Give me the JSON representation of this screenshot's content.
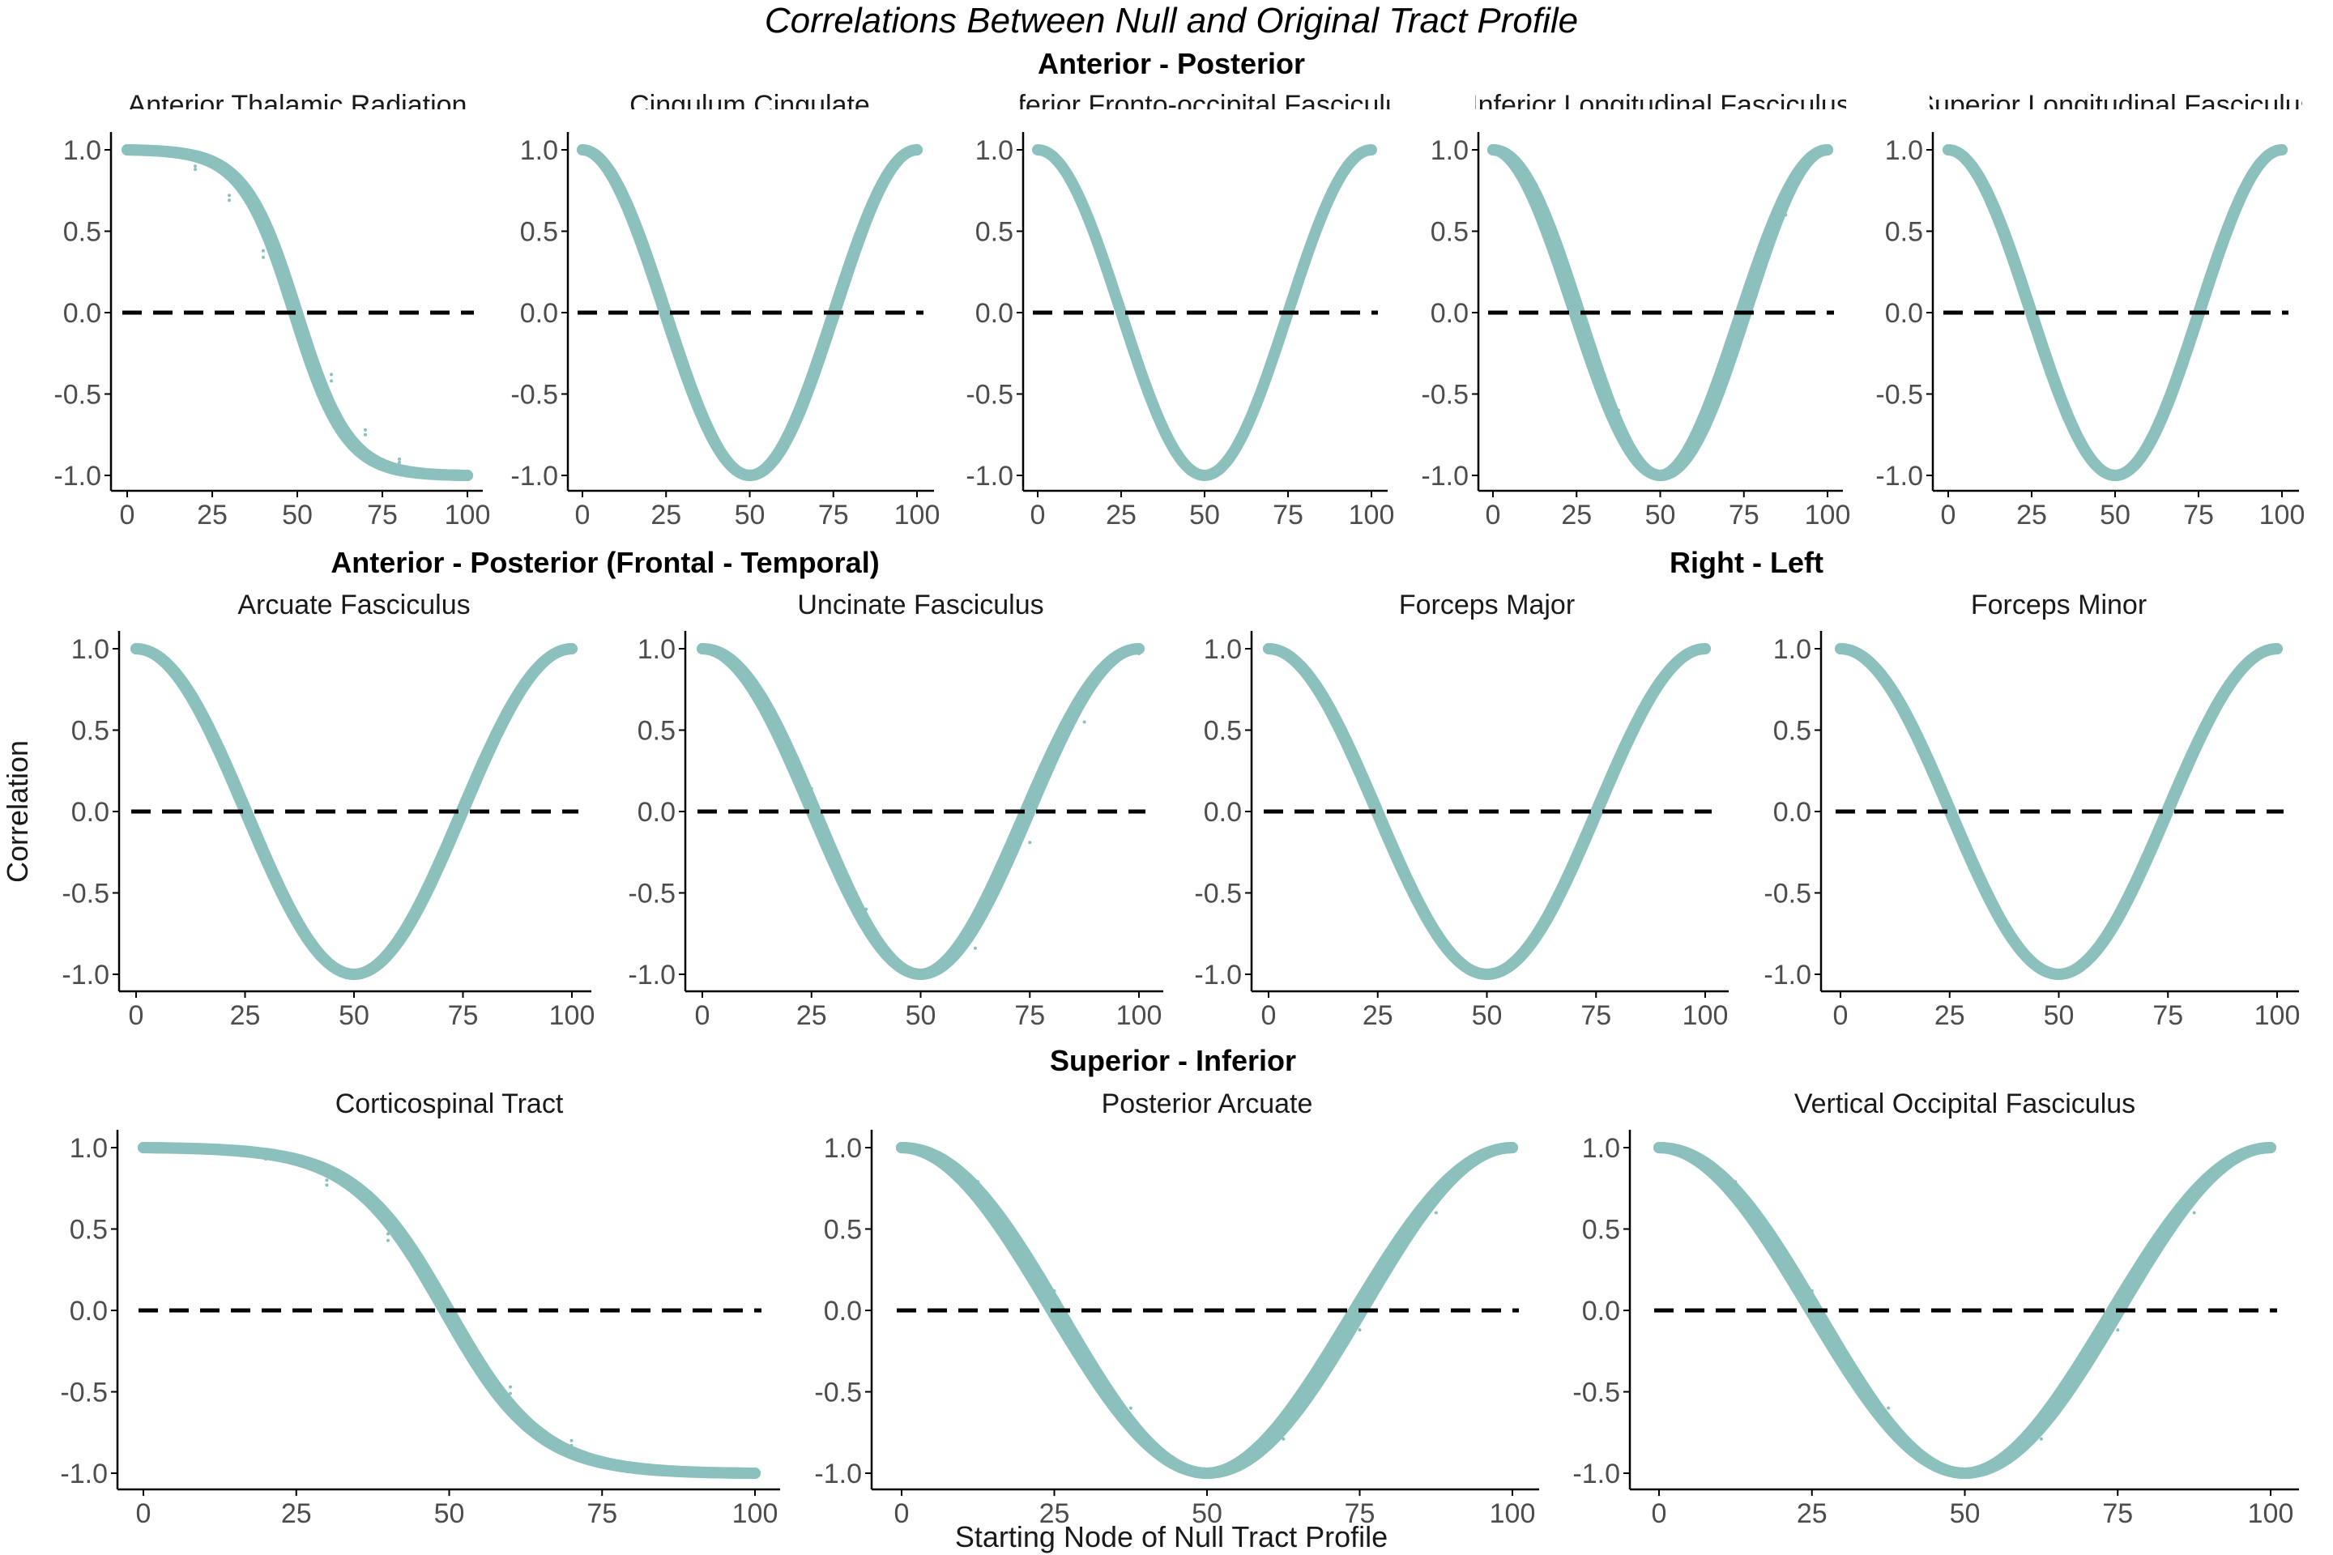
{
  "figure": {
    "title": "Correlations Between Null and Original Tract Profile",
    "xlabel": "Starting Node of Null Tract Profile",
    "ylabel": "Correlation",
    "colors": {
      "line": "#8cc0bc",
      "reference": "#000000",
      "axis": "#000000"
    }
  },
  "groups": [
    {
      "label": "Anterior - Posterior"
    },
    {
      "label": "Anterior - Posterior (Frontal - Temporal)"
    },
    {
      "label": "Right - Left"
    },
    {
      "label": "Superior - Inferior"
    }
  ],
  "chart_data": [
    {
      "type": "line",
      "group": "Anterior - Posterior",
      "title": "Anterior Thalamic Radiation",
      "shape": "half-cosine",
      "x": [
        0,
        10,
        20,
        30,
        40,
        50,
        60,
        70,
        80,
        90,
        100
      ],
      "xlim": [
        0,
        100
      ],
      "ylim": [
        -1,
        1
      ],
      "xticks": [
        "0",
        "25",
        "50",
        "75",
        "100"
      ],
      "yticks": [
        "1.0",
        "0.5",
        "0.0",
        "-0.5",
        "-1.0"
      ],
      "series": [
        {
          "values": [
            1.0,
            0.98,
            0.9,
            0.72,
            0.38,
            0.0,
            -0.38,
            -0.72,
            -0.9,
            -0.98,
            -1.0
          ]
        },
        {
          "values": [
            1.0,
            0.97,
            0.88,
            0.69,
            0.34,
            -0.04,
            -0.42,
            -0.75,
            -0.92,
            -0.99,
            -1.0
          ]
        }
      ],
      "reference_y": 0
    },
    {
      "type": "line",
      "group": "Anterior - Posterior",
      "title": "Cingulum Cingulate",
      "shape": "full-cosine",
      "x": [
        0,
        12.5,
        25,
        37.5,
        50,
        62.5,
        75,
        87.5,
        100
      ],
      "xlim": [
        0,
        100
      ],
      "ylim": [
        -1,
        1
      ],
      "xticks": [
        "0",
        "25",
        "50",
        "75",
        "100"
      ],
      "yticks": [
        "1.0",
        "0.5",
        "0.0",
        "-0.5",
        "-1.0"
      ],
      "series": [
        {
          "values": [
            1.0,
            0.71,
            0.0,
            -0.71,
            -1.0,
            -0.71,
            0.0,
            0.71,
            1.0
          ]
        },
        {
          "values": [
            1.0,
            0.66,
            -0.06,
            -0.75,
            -1.0,
            -0.66,
            0.06,
            0.75,
            1.0
          ]
        }
      ],
      "reference_y": 0
    },
    {
      "type": "line",
      "group": "Anterior - Posterior",
      "title": "Inferior Fronto-occipital Fasciculus",
      "shape": "full-cosine",
      "x": [
        0,
        12.5,
        25,
        37.5,
        50,
        62.5,
        75,
        87.5,
        100
      ],
      "xlim": [
        0,
        100
      ],
      "ylim": [
        -1,
        1
      ],
      "xticks": [
        "0",
        "25",
        "50",
        "75",
        "100"
      ],
      "yticks": [
        "1.0",
        "0.5",
        "0.0",
        "-0.5",
        "-1.0"
      ],
      "series": [
        {
          "values": [
            1.0,
            0.71,
            0.0,
            -0.71,
            -1.0,
            -0.71,
            0.0,
            0.71,
            1.0
          ]
        }
      ],
      "reference_y": 0
    },
    {
      "type": "line",
      "group": "Anterior - Posterior",
      "title": "Inferior Longitudinal Fasciculus",
      "shape": "full-cosine",
      "x": [
        0,
        12.5,
        25,
        37.5,
        50,
        62.5,
        75,
        87.5,
        100
      ],
      "xlim": [
        0,
        100
      ],
      "ylim": [
        -1,
        1
      ],
      "xticks": [
        "0",
        "25",
        "50",
        "75",
        "100"
      ],
      "yticks": [
        "1.0",
        "0.5",
        "0.0",
        "-0.5",
        "-1.0"
      ],
      "series": [
        {
          "values": [
            1.0,
            0.62,
            -0.09,
            -0.77,
            -1.0,
            -0.62,
            0.09,
            0.77,
            1.0
          ]
        },
        {
          "values": [
            1.0,
            0.71,
            0.0,
            -0.71,
            -1.0,
            -0.71,
            0.0,
            0.71,
            1.0
          ]
        },
        {
          "values": [
            1.0,
            0.79,
            0.12,
            -0.6,
            -1.0,
            -0.79,
            -0.12,
            0.6,
            1.0
          ]
        }
      ],
      "reference_y": 0
    },
    {
      "type": "line",
      "group": "Anterior - Posterior",
      "title": "Superior Longitudinal Fasciculus",
      "shape": "full-cosine",
      "x": [
        0,
        12.5,
        25,
        37.5,
        50,
        62.5,
        75,
        87.5,
        100
      ],
      "xlim": [
        0,
        100
      ],
      "ylim": [
        -1,
        1
      ],
      "xticks": [
        "0",
        "25",
        "50",
        "75",
        "100"
      ],
      "yticks": [
        "1.0",
        "0.5",
        "0.0",
        "-0.5",
        "-1.0"
      ],
      "series": [
        {
          "values": [
            1.0,
            0.71,
            0.0,
            -0.71,
            -1.0,
            -0.71,
            0.0,
            0.71,
            1.0
          ]
        },
        {
          "values": [
            1.0,
            0.68,
            -0.04,
            -0.73,
            -1.0,
            -0.68,
            0.04,
            0.73,
            1.0
          ]
        }
      ],
      "reference_y": 0
    },
    {
      "type": "line",
      "group": "Anterior - Posterior (Frontal - Temporal)",
      "title": "Arcuate Fasciculus",
      "shape": "full-cosine",
      "x": [
        0,
        12.5,
        25,
        37.5,
        50,
        62.5,
        75,
        87.5,
        100
      ],
      "xlim": [
        0,
        100
      ],
      "ylim": [
        -1,
        1
      ],
      "xticks": [
        "0",
        "25",
        "50",
        "75",
        "100"
      ],
      "yticks": [
        "1.0",
        "0.5",
        "0.0",
        "-0.5",
        "-1.0"
      ],
      "series": [
        {
          "values": [
            1.0,
            0.71,
            0.0,
            -0.71,
            -1.0,
            -0.71,
            0.0,
            0.71,
            1.0
          ]
        },
        {
          "values": [
            1.0,
            0.74,
            0.05,
            -0.68,
            -1.0,
            -0.74,
            -0.05,
            0.68,
            1.0
          ]
        }
      ],
      "reference_y": 0
    },
    {
      "type": "line",
      "group": "Anterior - Posterior (Frontal - Temporal)",
      "title": "Uncinate Fasciculus",
      "shape": "full-cosine",
      "x": [
        0,
        12.5,
        25,
        37.5,
        50,
        62.5,
        75,
        87.5,
        100
      ],
      "xlim": [
        0,
        100
      ],
      "ylim": [
        -1,
        1
      ],
      "xticks": [
        "0",
        "25",
        "50",
        "75",
        "100"
      ],
      "yticks": [
        "1.0",
        "0.5",
        "0.0",
        "-0.5",
        "-1.0"
      ],
      "series": [
        {
          "values": [
            1.0,
            0.71,
            0.0,
            -0.71,
            -1.0,
            -0.71,
            0.0,
            0.71,
            1.0
          ]
        },
        {
          "values": [
            1.0,
            0.79,
            0.14,
            -0.6,
            -0.99,
            -0.84,
            -0.19,
            0.55,
            0.97
          ]
        }
      ],
      "reference_y": 0
    },
    {
      "type": "line",
      "group": "Right - Left",
      "title": "Forceps Major",
      "shape": "full-cosine",
      "x": [
        0,
        12.5,
        25,
        37.5,
        50,
        62.5,
        75,
        87.5,
        100
      ],
      "xlim": [
        0,
        100
      ],
      "ylim": [
        -1,
        1
      ],
      "xticks": [
        "0",
        "25",
        "50",
        "75",
        "100"
      ],
      "yticks": [
        "1.0",
        "0.5",
        "0.0",
        "-0.5",
        "-1.0"
      ],
      "series": [
        {
          "values": [
            1.0,
            0.71,
            0.0,
            -0.71,
            -1.0,
            -0.71,
            0.0,
            0.71,
            1.0
          ]
        },
        {
          "values": [
            1.0,
            0.68,
            -0.04,
            -0.73,
            -1.0,
            -0.68,
            0.04,
            0.73,
            1.0
          ]
        }
      ],
      "reference_y": 0
    },
    {
      "type": "line",
      "group": "Right - Left",
      "title": "Forceps Minor",
      "shape": "full-cosine",
      "x": [
        0,
        12.5,
        25,
        37.5,
        50,
        62.5,
        75,
        87.5,
        100
      ],
      "xlim": [
        0,
        100
      ],
      "ylim": [
        -1,
        1
      ],
      "xticks": [
        "0",
        "25",
        "50",
        "75",
        "100"
      ],
      "yticks": [
        "1.0",
        "0.5",
        "0.0",
        "-0.5",
        "-1.0"
      ],
      "series": [
        {
          "values": [
            1.0,
            0.71,
            0.0,
            -0.71,
            -1.0,
            -0.71,
            0.0,
            0.71,
            1.0
          ]
        },
        {
          "values": [
            1.0,
            0.74,
            0.04,
            -0.69,
            -1.0,
            -0.74,
            -0.04,
            0.69,
            1.0
          ]
        }
      ],
      "reference_y": 0
    },
    {
      "type": "line",
      "group": "Superior - Inferior",
      "title": "Corticospinal Tract",
      "shape": "half-cosine",
      "x": [
        0,
        10,
        20,
        30,
        40,
        50,
        60,
        70,
        80,
        90,
        100
      ],
      "xlim": [
        0,
        100
      ],
      "ylim": [
        -1,
        1
      ],
      "xticks": [
        "0",
        "25",
        "50",
        "75",
        "100"
      ],
      "yticks": [
        "1.0",
        "0.5",
        "0.0",
        "-0.5",
        "-1.0"
      ],
      "series": [
        {
          "values": [
            1.0,
            0.99,
            0.94,
            0.8,
            0.47,
            0.0,
            -0.47,
            -0.8,
            -0.94,
            -0.99,
            -1.0
          ]
        },
        {
          "values": [
            1.0,
            0.99,
            0.93,
            0.77,
            0.43,
            -0.04,
            -0.51,
            -0.83,
            -0.95,
            -0.99,
            -1.0
          ]
        }
      ],
      "reference_y": 0
    },
    {
      "type": "line",
      "group": "Superior - Inferior",
      "title": "Posterior Arcuate",
      "shape": "full-cosine",
      "x": [
        0,
        12.5,
        25,
        37.5,
        50,
        62.5,
        75,
        87.5,
        100
      ],
      "xlim": [
        0,
        100
      ],
      "ylim": [
        -1,
        1
      ],
      "xticks": [
        "0",
        "25",
        "50",
        "75",
        "100"
      ],
      "yticks": [
        "1.0",
        "0.5",
        "0.0",
        "-0.5",
        "-1.0"
      ],
      "series": [
        {
          "values": [
            1.0,
            0.66,
            -0.06,
            -0.75,
            -1.0,
            -0.66,
            0.06,
            0.75,
            1.0
          ]
        },
        {
          "values": [
            1.0,
            0.74,
            0.05,
            -0.68,
            -1.0,
            -0.74,
            -0.05,
            0.68,
            1.0
          ]
        },
        {
          "values": [
            1.0,
            0.79,
            0.12,
            -0.6,
            -1.0,
            -0.79,
            -0.12,
            0.6,
            1.0
          ]
        }
      ],
      "reference_y": 0
    },
    {
      "type": "line",
      "group": "Superior - Inferior",
      "title": "Vertical Occipital Fasciculus",
      "shape": "full-cosine",
      "x": [
        0,
        12.5,
        25,
        37.5,
        50,
        62.5,
        75,
        87.5,
        100
      ],
      "xlim": [
        0,
        100
      ],
      "ylim": [
        -1,
        1
      ],
      "xticks": [
        "0",
        "25",
        "50",
        "75",
        "100"
      ],
      "yticks": [
        "1.0",
        "0.5",
        "0.0",
        "-0.5",
        "-1.0"
      ],
      "series": [
        {
          "values": [
            1.0,
            0.68,
            -0.04,
            -0.73,
            -1.0,
            -0.68,
            0.04,
            0.73,
            1.0
          ]
        },
        {
          "values": [
            1.0,
            0.74,
            0.05,
            -0.68,
            -1.0,
            -0.74,
            -0.05,
            0.68,
            1.0
          ]
        },
        {
          "values": [
            1.0,
            0.79,
            0.12,
            -0.6,
            -1.0,
            -0.79,
            -0.12,
            0.6,
            1.0
          ]
        }
      ],
      "reference_y": 0
    }
  ]
}
